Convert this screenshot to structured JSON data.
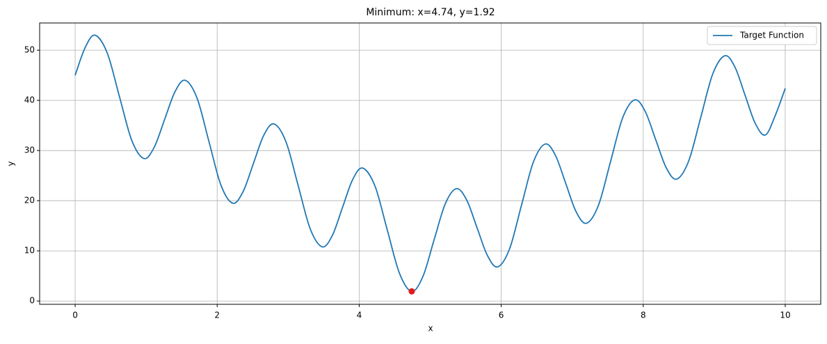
{
  "chart_data": {
    "type": "line",
    "title": "Minimum: x=4.74, y=1.92",
    "x_label": "x",
    "y_label": "y",
    "xlim": [
      -0.5,
      10.5
    ],
    "ylim": [
      -0.66,
      55.43
    ],
    "xticks": [
      0,
      2,
      4,
      6,
      8,
      10
    ],
    "yticks": [
      0,
      10,
      20,
      30,
      40,
      50
    ],
    "grid": true,
    "legend": "upper right",
    "x": [
      0,
      0.14,
      0.28,
      0.453,
      0.625,
      0.798,
      0.97,
      1.115,
      1.26,
      1.405,
      1.55,
      1.718,
      1.885,
      2.053,
      2.22,
      2.365,
      2.51,
      2.655,
      2.8,
      2.97,
      3.14,
      3.31,
      3.48,
      3.623,
      3.765,
      3.908,
      4.05,
      4.223,
      4.395,
      4.568,
      4.74,
      4.898,
      5.055,
      5.213,
      5.37,
      5.515,
      5.66,
      5.805,
      5.95,
      6.118,
      6.285,
      6.453,
      6.62,
      6.765,
      6.91,
      7.055,
      7.2,
      7.37,
      7.54,
      7.71,
      7.88,
      8.028,
      8.175,
      8.323,
      8.47,
      8.64,
      8.81,
      8.98,
      9.15,
      9.293,
      9.435,
      9.578,
      9.72,
      9.86,
      10
    ],
    "series": [
      {
        "name": "Target Function",
        "color": "#1f77b4",
        "values": [
          45,
          50.5,
          53,
          49.4,
          40.7,
          32.0,
          28.4,
          30.7,
          36.2,
          41.7,
          44,
          40.4,
          31.75,
          23.1,
          19.5,
          21.8,
          27.4,
          33.0,
          35.3,
          31.7,
          23.05,
          14.4,
          10.8,
          13.1,
          18.65,
          24.2,
          26.5,
          22.9,
          14.2,
          5.5,
          1.92,
          4.9,
          12.2,
          19.4,
          22.4,
          20.1,
          14.6,
          9.1,
          6.8,
          10.4,
          19.05,
          27.7,
          31.3,
          29.0,
          23.4,
          17.8,
          15.5,
          19.1,
          27.8,
          36.5,
          40.1,
          37.8,
          32.2,
          26.6,
          24.3,
          27.9,
          36.6,
          45.3,
          48.9,
          46.6,
          41.0,
          35.4,
          33.1,
          37.0,
          42.4
        ]
      }
    ],
    "minimum": {
      "x": 4.74,
      "y": 1.92,
      "color": "#e41a1c"
    }
  }
}
